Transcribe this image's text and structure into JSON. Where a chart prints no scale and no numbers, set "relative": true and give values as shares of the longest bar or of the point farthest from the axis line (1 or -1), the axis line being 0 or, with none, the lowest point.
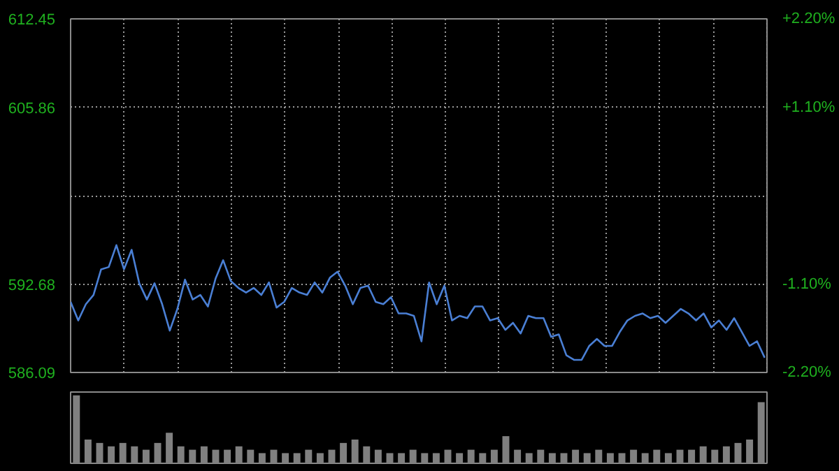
{
  "chart_data": [
    {
      "type": "line",
      "categories": [
        null,
        null,
        null,
        null,
        null,
        null,
        null,
        null,
        null,
        null,
        null,
        null,
        null,
        null,
        null,
        null,
        null,
        null,
        null,
        null,
        null,
        null,
        null,
        null,
        null,
        null,
        null,
        null,
        null,
        null,
        null,
        null,
        null,
        null,
        null,
        null,
        null,
        null,
        null,
        null,
        null,
        null,
        null,
        null,
        null,
        null,
        null,
        null,
        null,
        null,
        null,
        null,
        null,
        null,
        null,
        null,
        null,
        null,
        null,
        null,
        null,
        null,
        null,
        null,
        null,
        null,
        null,
        null,
        null,
        null,
        null,
        null,
        null,
        null,
        null,
        null,
        null,
        null,
        null,
        null,
        null,
        null,
        null,
        null,
        null,
        null,
        null,
        null,
        null,
        null,
        null,
        null
      ],
      "series": [
        {
          "color": "#4a7fd4",
          "values": [
            591.35,
            589.97,
            591.18,
            591.87,
            593.78,
            593.95,
            595.58,
            593.78,
            595.23,
            592.74,
            591.53,
            592.74,
            591.18,
            589.21,
            590.83,
            593.01,
            591.53,
            591.87,
            591.01,
            593.08,
            594.46,
            592.91,
            592.39,
            592.05,
            592.39,
            591.87,
            592.8,
            590.93,
            591.35,
            592.39,
            592.05,
            591.87,
            592.8,
            592.05,
            593.16,
            593.6,
            592.56,
            591.18,
            592.39,
            592.56,
            591.35,
            591.18,
            591.7,
            590.49,
            590.49,
            590.31,
            588.41,
            592.8,
            591.18,
            592.56,
            589.97,
            590.31,
            590.14,
            591.01,
            591.01,
            589.97,
            590.14,
            589.27,
            589.79,
            589.0,
            590.31,
            590.14,
            590.14,
            588.75,
            588.93,
            587.37,
            587.03,
            587.03,
            588.07,
            588.59,
            588.07,
            588.07,
            589.11,
            589.97,
            590.31,
            590.49,
            590.14,
            590.31,
            589.79,
            590.31,
            590.83,
            590.49,
            589.97,
            590.49,
            589.45,
            589.97,
            589.27,
            590.14,
            589.11,
            588.07,
            588.41,
            587.19
          ]
        }
      ],
      "ylim": [
        586.09,
        612.45
      ],
      "yticks": [
        612.45,
        605.86,
        {
          "value": 599.27,
          "label": null
        },
        592.68,
        586.09
      ],
      "y2lim": [
        -2.2,
        2.2
      ],
      "y2ticks": [
        {
          "value": 2.2,
          "label": "+2.20%"
        },
        {
          "value": 1.1,
          "label": "+1.10%"
        },
        {
          "value": 0,
          "label": null
        },
        {
          "value": -1.1,
          "label": "-1.10%"
        },
        {
          "value": -2.2,
          "label": "-2.20%"
        }
      ],
      "tick_labels": "y",
      "grid": true
    },
    {
      "type": "bar",
      "relative": true,
      "color": "#808080",
      "tick_labels": false,
      "categories": [
        null,
        null,
        null,
        null,
        null,
        null,
        null,
        null,
        null,
        null,
        null,
        null,
        null,
        null,
        null,
        null,
        null,
        null,
        null,
        null,
        null,
        null,
        null,
        null,
        null,
        null,
        null,
        null,
        null,
        null,
        null,
        null,
        null,
        null,
        null,
        null,
        null,
        null,
        null,
        null,
        null,
        null,
        null,
        null,
        null,
        null,
        null,
        null,
        null,
        null,
        null,
        null,
        null,
        null,
        null,
        null,
        null,
        null,
        null,
        null
      ],
      "values": [
        1.0,
        0.35,
        0.3,
        0.25,
        0.3,
        0.25,
        0.2,
        0.3,
        0.45,
        0.25,
        0.2,
        0.25,
        0.2,
        0.2,
        0.25,
        0.2,
        0.15,
        0.2,
        0.15,
        0.15,
        0.2,
        0.15,
        0.2,
        0.3,
        0.35,
        0.25,
        0.2,
        0.15,
        0.15,
        0.2,
        0.15,
        0.15,
        0.2,
        0.15,
        0.2,
        0.15,
        0.2,
        0.4,
        0.2,
        0.15,
        0.2,
        0.15,
        0.15,
        0.2,
        0.15,
        0.2,
        0.15,
        0.15,
        0.2,
        0.15,
        0.2,
        0.15,
        0.2,
        0.2,
        0.25,
        0.2,
        0.25,
        0.3,
        0.35,
        0.9
      ]
    }
  ]
}
